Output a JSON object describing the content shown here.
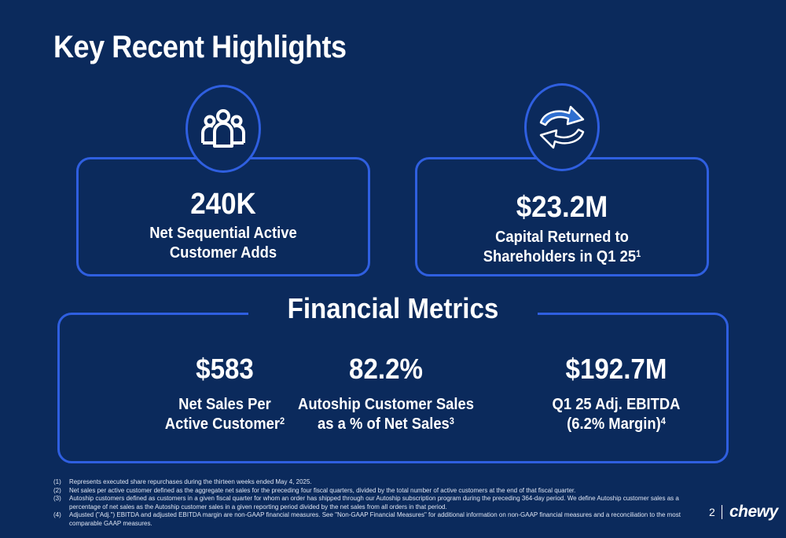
{
  "title": "Key Recent Highlights",
  "highlights": [
    {
      "value": "240K",
      "label_line1": "Net Sequential Active",
      "label_line2": "Customer Adds",
      "sup": "",
      "icon": "people-icon"
    },
    {
      "value": "$23.2M",
      "label_line1": "Capital Returned to",
      "label_line2": "Shareholders in Q1 25",
      "sup": "1",
      "icon": "recycle-arrows-icon"
    }
  ],
  "financial_metrics": {
    "title": "Financial Metrics",
    "items": [
      {
        "value": "$583",
        "label_line1": "Net Sales Per",
        "label_line2": "Active Customer",
        "sup": "2"
      },
      {
        "value": "82.2%",
        "label_line1": "Autoship Customer Sales",
        "label_line2": "as a % of Net Sales",
        "sup": "3"
      },
      {
        "value": "$192.7M",
        "label_line1": "Q1 25 Adj. EBITDA",
        "label_line2": "(6.2% Margin)",
        "sup": "4"
      }
    ]
  },
  "footnotes": [
    {
      "num": "(1)",
      "text": "Represents executed share repurchases during the thirteen weeks ended May 4, 2025."
    },
    {
      "num": "(2)",
      "text": "Net sales per active customer defined as the aggregate net sales for the preceding four fiscal quarters, divided by the total number of active customers at the end of that fiscal quarter."
    },
    {
      "num": "(3)",
      "text": "Autoship customers defined as customers in a given fiscal quarter for whom an order has shipped through our Autoship subscription program during the preceding 364-day period. We define Autoship customer sales as a percentage of net sales as the Autoship customer sales in a given reporting period divided by the net sales from all orders in that period."
    },
    {
      "num": "(4)",
      "text": "Adjusted (\"Adj.\") EBITDA and adjusted EBITDA margin are non-GAAP financial measures. See \"Non-GAAP Financial Measures\" for additional information on non-GAAP financial measures and a reconciliation to the most comparable GAAP measures."
    }
  ],
  "page_number": "2",
  "logo_text": "chewy",
  "colors": {
    "background": "#0b2a5c",
    "accent_border": "#2f5fe0"
  }
}
